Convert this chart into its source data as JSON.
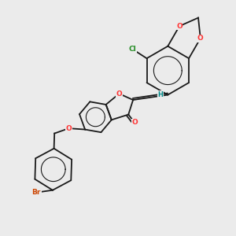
{
  "background_color": "#ebebeb",
  "bond_color": "#1a1a1a",
  "atom_colors": {
    "O": "#ff3333",
    "Cl": "#228b22",
    "Br": "#cc4400",
    "H": "#008888",
    "C": "#1a1a1a"
  },
  "font_size_atom": 6.5,
  "line_width": 1.3,
  "xlim": [
    0,
    10
  ],
  "ylim": [
    0,
    10
  ]
}
